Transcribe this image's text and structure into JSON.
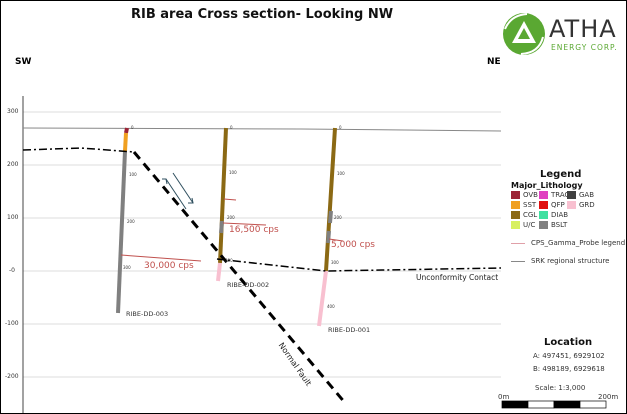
{
  "title": "RIB area Cross section- Looking NW",
  "directions": {
    "left": "SW",
    "right": "NE"
  },
  "logo": {
    "name": "ATHA",
    "sub": "ENERGY CORP.",
    "color": "#5aa832"
  },
  "y_axis_ticks": [
    "300",
    "200",
    "100",
    "-0",
    "-100",
    "-200"
  ],
  "drillholes": [
    {
      "name": "RIBE-DD-003",
      "depth_ticks": [
        "0",
        "100",
        "200",
        "300"
      ],
      "gamma_label": "30,000 cps"
    },
    {
      "name": "RIBE-DD-002",
      "depth_ticks": [
        "0",
        "100",
        "200",
        "300"
      ],
      "gamma_label": "16,500 cps"
    },
    {
      "name": "RIBE-DD-001",
      "depth_ticks": [
        "0",
        "100",
        "200",
        "300",
        "400"
      ],
      "gamma_label": "5,000 cps"
    }
  ],
  "annotations": {
    "unconformity": "Unconformity Contact",
    "fault": "Normal Fault"
  },
  "legend": {
    "title": "Legend",
    "subtitle": "Major_Lithology",
    "items": [
      {
        "label": "OVB",
        "color": "#9b2335"
      },
      {
        "label": "SST",
        "color": "#f0a020"
      },
      {
        "label": "CGL",
        "color": "#8b6914"
      },
      {
        "label": "U/C",
        "color": "#d8f060"
      },
      {
        "label": "TRAC",
        "color": "#e040c0"
      },
      {
        "label": "QFP",
        "color": "#e01010"
      },
      {
        "label": "DIAB",
        "color": "#40e0a0"
      },
      {
        "label": "BSLT",
        "color": "#808080"
      },
      {
        "label": "GAB",
        "color": "#404040"
      },
      {
        "label": "GRD",
        "color": "#f8c0d0"
      }
    ],
    "lines": [
      {
        "label": "CPS_Gamma_Probe legend",
        "color": "#e0a0a8"
      },
      {
        "label": "SRK regional structure",
        "color": "#888888"
      }
    ]
  },
  "location": {
    "title": "Location",
    "a": "A:   497451, 6929102",
    "b": "B:   498189, 6929618",
    "scale": "Scale: 1:3,000",
    "bar_start": "0m",
    "bar_end": "200m"
  }
}
